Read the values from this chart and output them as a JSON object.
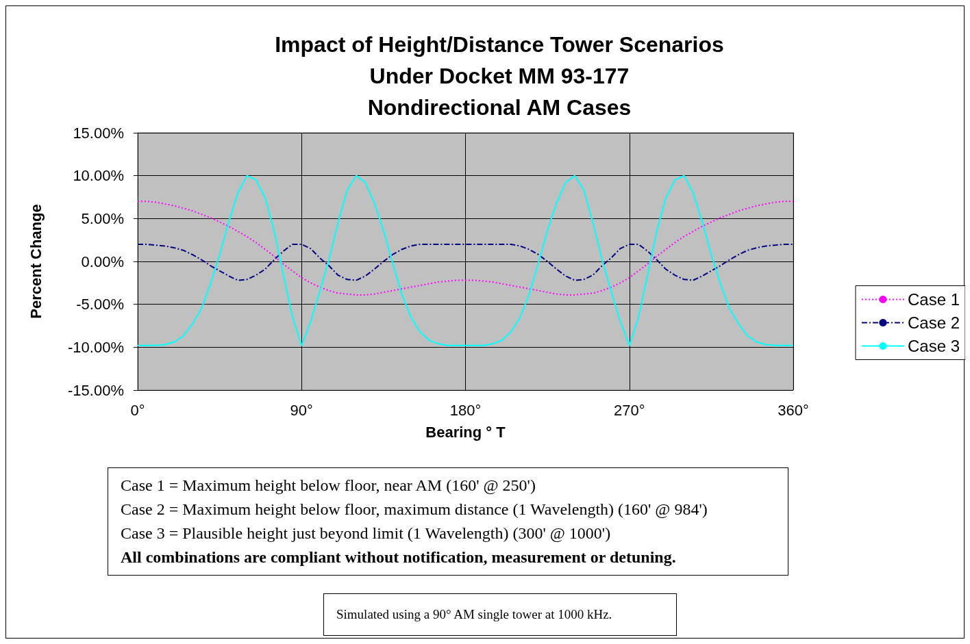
{
  "chart_data": {
    "type": "line",
    "title": "Impact of Height/Distance Tower Scenarios\nUnder Docket MM 93-177\nNondirectional AM Cases",
    "xlabel": "Bearing ° T",
    "ylabel": "Percent Change",
    "x": [
      0,
      5,
      10,
      15,
      20,
      25,
      30,
      35,
      40,
      45,
      50,
      55,
      60,
      65,
      70,
      75,
      80,
      85,
      90,
      95,
      100,
      105,
      110,
      115,
      120,
      125,
      130,
      135,
      140,
      145,
      150,
      155,
      160,
      165,
      170,
      175,
      180,
      185,
      190,
      195,
      200,
      205,
      210,
      215,
      220,
      225,
      230,
      235,
      240,
      245,
      250,
      255,
      260,
      265,
      270,
      275,
      280,
      285,
      290,
      295,
      300,
      305,
      310,
      315,
      320,
      325,
      330,
      335,
      340,
      345,
      350,
      355,
      360
    ],
    "series": [
      {
        "name": "Case 1",
        "color": "#ff00ff",
        "line_style": "dotted",
        "values": [
          7.0,
          7.0,
          6.9,
          6.7,
          6.5,
          6.2,
          5.9,
          5.5,
          5.1,
          4.6,
          4.1,
          3.5,
          2.9,
          2.2,
          1.4,
          0.6,
          -0.3,
          -1.1,
          -1.9,
          -2.5,
          -3.0,
          -3.4,
          -3.7,
          -3.8,
          -3.9,
          -3.9,
          -3.8,
          -3.6,
          -3.4,
          -3.2,
          -3.0,
          -2.8,
          -2.6,
          -2.4,
          -2.3,
          -2.2,
          -2.2,
          -2.2,
          -2.3,
          -2.4,
          -2.6,
          -2.8,
          -3.0,
          -3.2,
          -3.4,
          -3.6,
          -3.8,
          -3.9,
          -3.9,
          -3.8,
          -3.7,
          -3.4,
          -3.0,
          -2.5,
          -1.9,
          -1.1,
          -0.3,
          0.6,
          1.4,
          2.2,
          2.9,
          3.5,
          4.1,
          4.6,
          5.1,
          5.5,
          5.9,
          6.2,
          6.5,
          6.7,
          6.9,
          7.0,
          7.0
        ]
      },
      {
        "name": "Case 2",
        "color": "#000080",
        "line_style": "dashed",
        "values": [
          2.0,
          2.0,
          1.9,
          1.8,
          1.6,
          1.3,
          0.8,
          0.2,
          -0.5,
          -1.1,
          -1.7,
          -2.2,
          -2.1,
          -1.6,
          -0.9,
          0.2,
          1.2,
          2.0,
          2.0,
          1.5,
          0.4,
          -0.5,
          -1.6,
          -2.1,
          -2.2,
          -1.7,
          -0.9,
          0.0,
          0.8,
          1.4,
          1.8,
          2.0,
          2.0,
          2.0,
          2.0,
          2.0,
          2.0,
          2.0,
          2.0,
          2.0,
          2.0,
          2.0,
          1.8,
          1.4,
          0.8,
          0.0,
          -0.9,
          -1.7,
          -2.2,
          -2.1,
          -1.6,
          -0.5,
          0.4,
          1.5,
          2.0,
          2.0,
          1.2,
          0.2,
          -0.9,
          -1.6,
          -2.1,
          -2.2,
          -1.7,
          -1.1,
          -0.5,
          0.2,
          0.8,
          1.3,
          1.6,
          1.8,
          1.9,
          2.0,
          2.0
        ]
      },
      {
        "name": "Case 3",
        "color": "#00ffff",
        "line_style": "solid",
        "values": [
          -9.8,
          -9.8,
          -9.8,
          -9.7,
          -9.4,
          -8.7,
          -7.3,
          -5.5,
          -2.6,
          0.8,
          4.6,
          8.0,
          10.0,
          9.5,
          7.4,
          3.5,
          -1.6,
          -6.5,
          -9.8,
          -7.0,
          -3.5,
          0.2,
          4.5,
          8.3,
          10.0,
          9.2,
          6.8,
          3.6,
          -0.2,
          -3.8,
          -6.5,
          -8.2,
          -9.2,
          -9.6,
          -9.8,
          -9.8,
          -9.8,
          -9.8,
          -9.8,
          -9.6,
          -9.2,
          -8.2,
          -6.5,
          -3.8,
          -0.2,
          3.6,
          6.8,
          9.2,
          10.0,
          8.3,
          4.5,
          0.2,
          -3.5,
          -7.0,
          -9.8,
          -6.5,
          -1.6,
          3.5,
          7.4,
          9.5,
          10.0,
          8.0,
          4.6,
          0.8,
          -2.6,
          -5.5,
          -7.3,
          -8.7,
          -9.4,
          -9.7,
          -9.8,
          -9.8,
          -9.8
        ]
      }
    ],
    "xlim": [
      0,
      360
    ],
    "xticks": [
      {
        "value": 0,
        "label": "0°"
      },
      {
        "value": 90,
        "label": "90°"
      },
      {
        "value": 180,
        "label": "180°"
      },
      {
        "value": 270,
        "label": "270°"
      },
      {
        "value": 360,
        "label": "360°"
      }
    ],
    "ylim": [
      -15,
      15
    ],
    "yticks": [
      {
        "value": -15,
        "label": "-15.00%"
      },
      {
        "value": -10,
        "label": "-10.00%"
      },
      {
        "value": -5,
        "label": "-5.00%"
      },
      {
        "value": 0,
        "label": "0.00%"
      },
      {
        "value": 5,
        "label": "5.00%"
      },
      {
        "value": 10,
        "label": "10.00%"
      },
      {
        "value": 15,
        "label": "15.00%"
      }
    ],
    "grid": true,
    "legend": "right",
    "marker": "none",
    "annotations": [
      "Case 1 = Maximum height below floor, near AM (160' @ 250')",
      "Case 2 = Maximum height below floor, maximum distance (1 Wavelength) (160' @ 984')",
      "Case 3 = Plausible height just beyond limit (1 Wavelength) (300' @ 1000')",
      "All combinations are compliant without notification, measurement or detuning.",
      "Simulated using a 90° AM single tower at 1000 kHz."
    ]
  }
}
